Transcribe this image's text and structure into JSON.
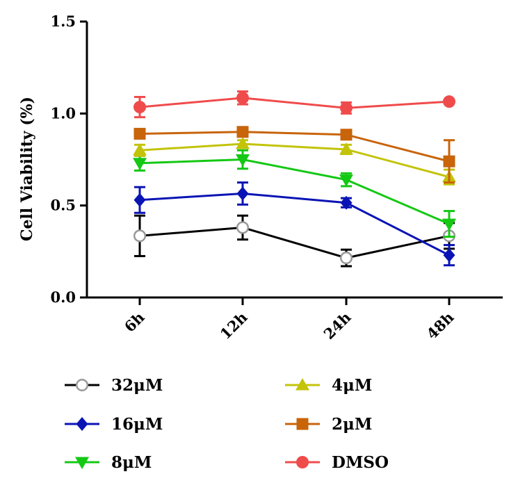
{
  "chart_data": {
    "type": "line",
    "title": "",
    "xlabel": "",
    "ylabel": "Cell Viability (%)",
    "categories": [
      "6h",
      "12h",
      "24h",
      "48h"
    ],
    "ylim": [
      0,
      1.5
    ],
    "yticks": [
      "0.0",
      "0.5",
      "1.0",
      "1.5"
    ],
    "grid": false,
    "legend_position": "bottom",
    "series": [
      {
        "name": "32μM",
        "color": "#000000",
        "marker_color": "#999999",
        "marker": "open-circle",
        "values": [
          0.335,
          0.38,
          0.215,
          0.335
        ],
        "errors": [
          0.11,
          0.065,
          0.045,
          0.07
        ]
      },
      {
        "name": "16μM",
        "color": "#0a14b4",
        "marker_color": "#0a14b4",
        "marker": "diamond",
        "values": [
          0.53,
          0.565,
          0.515,
          0.23
        ],
        "errors": [
          0.07,
          0.06,
          0.025,
          0.055
        ]
      },
      {
        "name": "8μM",
        "color": "#14c814",
        "marker_color": "#14c814",
        "marker": "triangle-down",
        "values": [
          0.73,
          0.75,
          0.64,
          0.4
        ],
        "errors": [
          0.04,
          0.05,
          0.035,
          0.07
        ]
      },
      {
        "name": "4μM",
        "color": "#c3c30a",
        "marker_color": "#c3c30a",
        "marker": "triangle-up",
        "values": [
          0.8,
          0.835,
          0.805,
          0.655
        ],
        "errors": [
          0.03,
          0.02,
          0.025,
          0.04
        ]
      },
      {
        "name": "2μM",
        "color": "#c8640a",
        "marker_color": "#c8640a",
        "marker": "square",
        "values": [
          0.89,
          0.9,
          0.885,
          0.74
        ],
        "errors": [
          0.015,
          0.015,
          0.02,
          0.115
        ]
      },
      {
        "name": "DMSO",
        "color": "#f04b4b",
        "marker_color": "#f04b4b",
        "marker": "circle",
        "values": [
          1.035,
          1.085,
          1.03,
          1.065
        ],
        "errors": [
          0.055,
          0.035,
          0.03,
          0.01
        ]
      }
    ]
  }
}
